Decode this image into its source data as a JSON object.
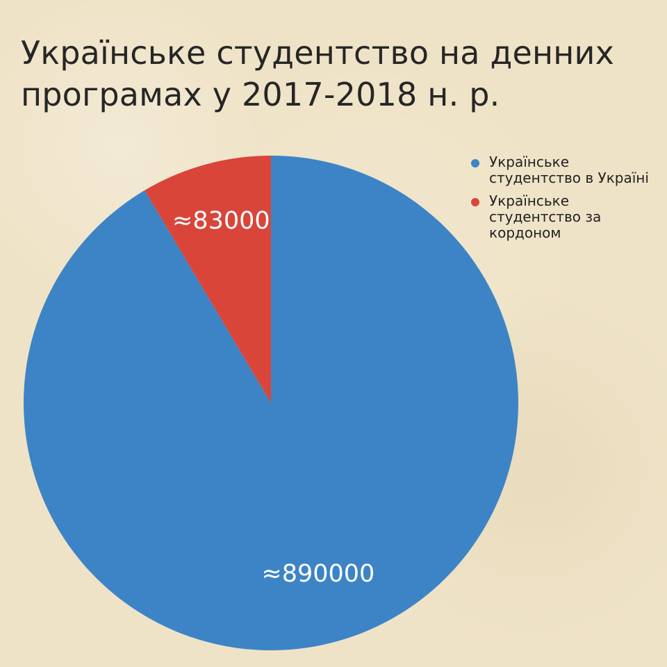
{
  "chart_data": {
    "type": "pie",
    "title": "Українське студентство на денних програмах у 2017-2018 н. р.",
    "categories": [
      "Українське студентство в Україні",
      "Українське студентство за кордоном"
    ],
    "values": [
      890000,
      83000
    ],
    "data_labels": [
      "≈890000",
      "≈83000"
    ],
    "colors": [
      "#3d84c6",
      "#da453a"
    ],
    "legend_position": "right"
  }
}
